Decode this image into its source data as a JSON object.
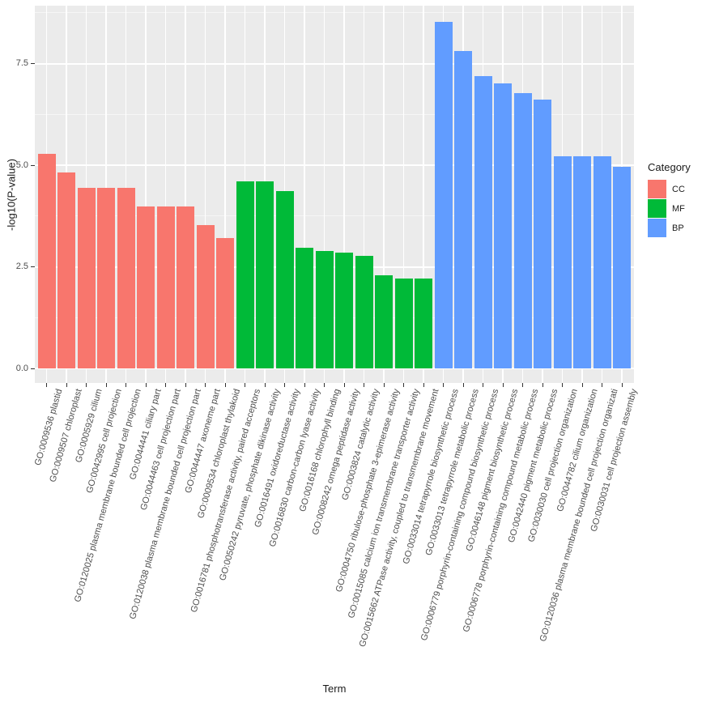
{
  "chart_data": {
    "type": "bar",
    "title": "",
    "xlabel": "Term",
    "ylabel": "-log10(P-value)",
    "ylim": [
      0,
      8.9
    ],
    "yticks": [
      0,
      2.5,
      5,
      7.5
    ],
    "ytick_labels": [
      "0.0",
      "2.5",
      "5.0",
      "7.5"
    ],
    "yticks_minor": [
      1.25,
      3.75,
      6.25,
      8.75
    ],
    "grid": "white major and minor gridlines on grey panel",
    "panel_background": "#EBEBEB",
    "grid_color": "#FFFFFF",
    "tick_color": "#333333",
    "axis_text_color": "#4D4D4D",
    "legend": {
      "title": "Category",
      "position": "right",
      "entries": [
        {
          "label": "CC",
          "color": "#F8766D"
        },
        {
          "label": "MF",
          "color": "#00BA38"
        },
        {
          "label": "BP",
          "color": "#619CFF"
        }
      ]
    },
    "bars": [
      {
        "term": "GO:0009536 plastid",
        "category": "CC",
        "value": 5.28
      },
      {
        "term": "GO:0009507 chloroplast",
        "category": "CC",
        "value": 4.82
      },
      {
        "term": "GO:0005929 cilium",
        "category": "CC",
        "value": 4.44
      },
      {
        "term": "GO:0042995 cell projection",
        "category": "CC",
        "value": 4.44
      },
      {
        "term": "GO:0120025 plasma membrane bounded cell projection",
        "category": "CC",
        "value": 4.44
      },
      {
        "term": "GO:0044441 ciliary part",
        "category": "CC",
        "value": 3.98
      },
      {
        "term": "GO:0044463 cell projection part",
        "category": "CC",
        "value": 3.98
      },
      {
        "term": "GO:0120038 plasma membrane bounded cell projection part",
        "category": "CC",
        "value": 3.98
      },
      {
        "term": "GO:0044447 axoneme part",
        "category": "CC",
        "value": 3.52
      },
      {
        "term": "GO:0009534 chloroplast thylakoid",
        "category": "CC",
        "value": 3.2
      },
      {
        "term": "GO:0016781 phosphotransferase activity, paired acceptors",
        "category": "MF",
        "value": 4.6
      },
      {
        "term": "GO:0050242 pyruvate, phosphate dikinase activity",
        "category": "MF",
        "value": 4.6
      },
      {
        "term": "GO:0016491 oxidoreductase activity",
        "category": "MF",
        "value": 4.36
      },
      {
        "term": "GO:0016830 carbon-carbon lyase activity",
        "category": "MF",
        "value": 2.97
      },
      {
        "term": "GO:0016168 chlorophyll binding",
        "category": "MF",
        "value": 2.89
      },
      {
        "term": "GO:0008242 omega peptidase activity",
        "category": "MF",
        "value": 2.84
      },
      {
        "term": "GO:0003824 catalytic activity",
        "category": "MF",
        "value": 2.77
      },
      {
        "term": "GO:0004750 ribulose-phosphate 3-epimerase activity",
        "category": "MF",
        "value": 2.3
      },
      {
        "term": "GO:0015085 calcium ion transmembrane transporter activity",
        "category": "MF",
        "value": 2.22
      },
      {
        "term": "GO:0015662 ATPase activity, coupled to transmembrane movement",
        "category": "MF",
        "value": 2.22
      },
      {
        "term": "GO:0033014 tetrapyrrole biosynthetic process",
        "category": "BP",
        "value": 8.53
      },
      {
        "term": "GO:0033013 tetrapyrrole metabolic process",
        "category": "BP",
        "value": 7.8
      },
      {
        "term": "GO:0006779 porphyrin-containing compound biosynthetic process",
        "category": "BP",
        "value": 7.2
      },
      {
        "term": "GO:0046148 pigment biosynthetic process",
        "category": "BP",
        "value": 7.02
      },
      {
        "term": "GO:0006778 porphyrin-containing compound metabolic process",
        "category": "BP",
        "value": 6.78
      },
      {
        "term": "GO:0042440 pigment metabolic process",
        "category": "BP",
        "value": 6.62
      },
      {
        "term": "GO:0030030 cell projection organization",
        "category": "BP",
        "value": 5.22
      },
      {
        "term": "GO:0044782 cilium organization",
        "category": "BP",
        "value": 5.22
      },
      {
        "term": "GO:0120036 plasma membrane bounded cell projection organizati",
        "category": "BP",
        "value": 5.22
      },
      {
        "term": "GO:0030031 cell projection assembly",
        "category": "BP",
        "value": 4.97
      }
    ]
  }
}
